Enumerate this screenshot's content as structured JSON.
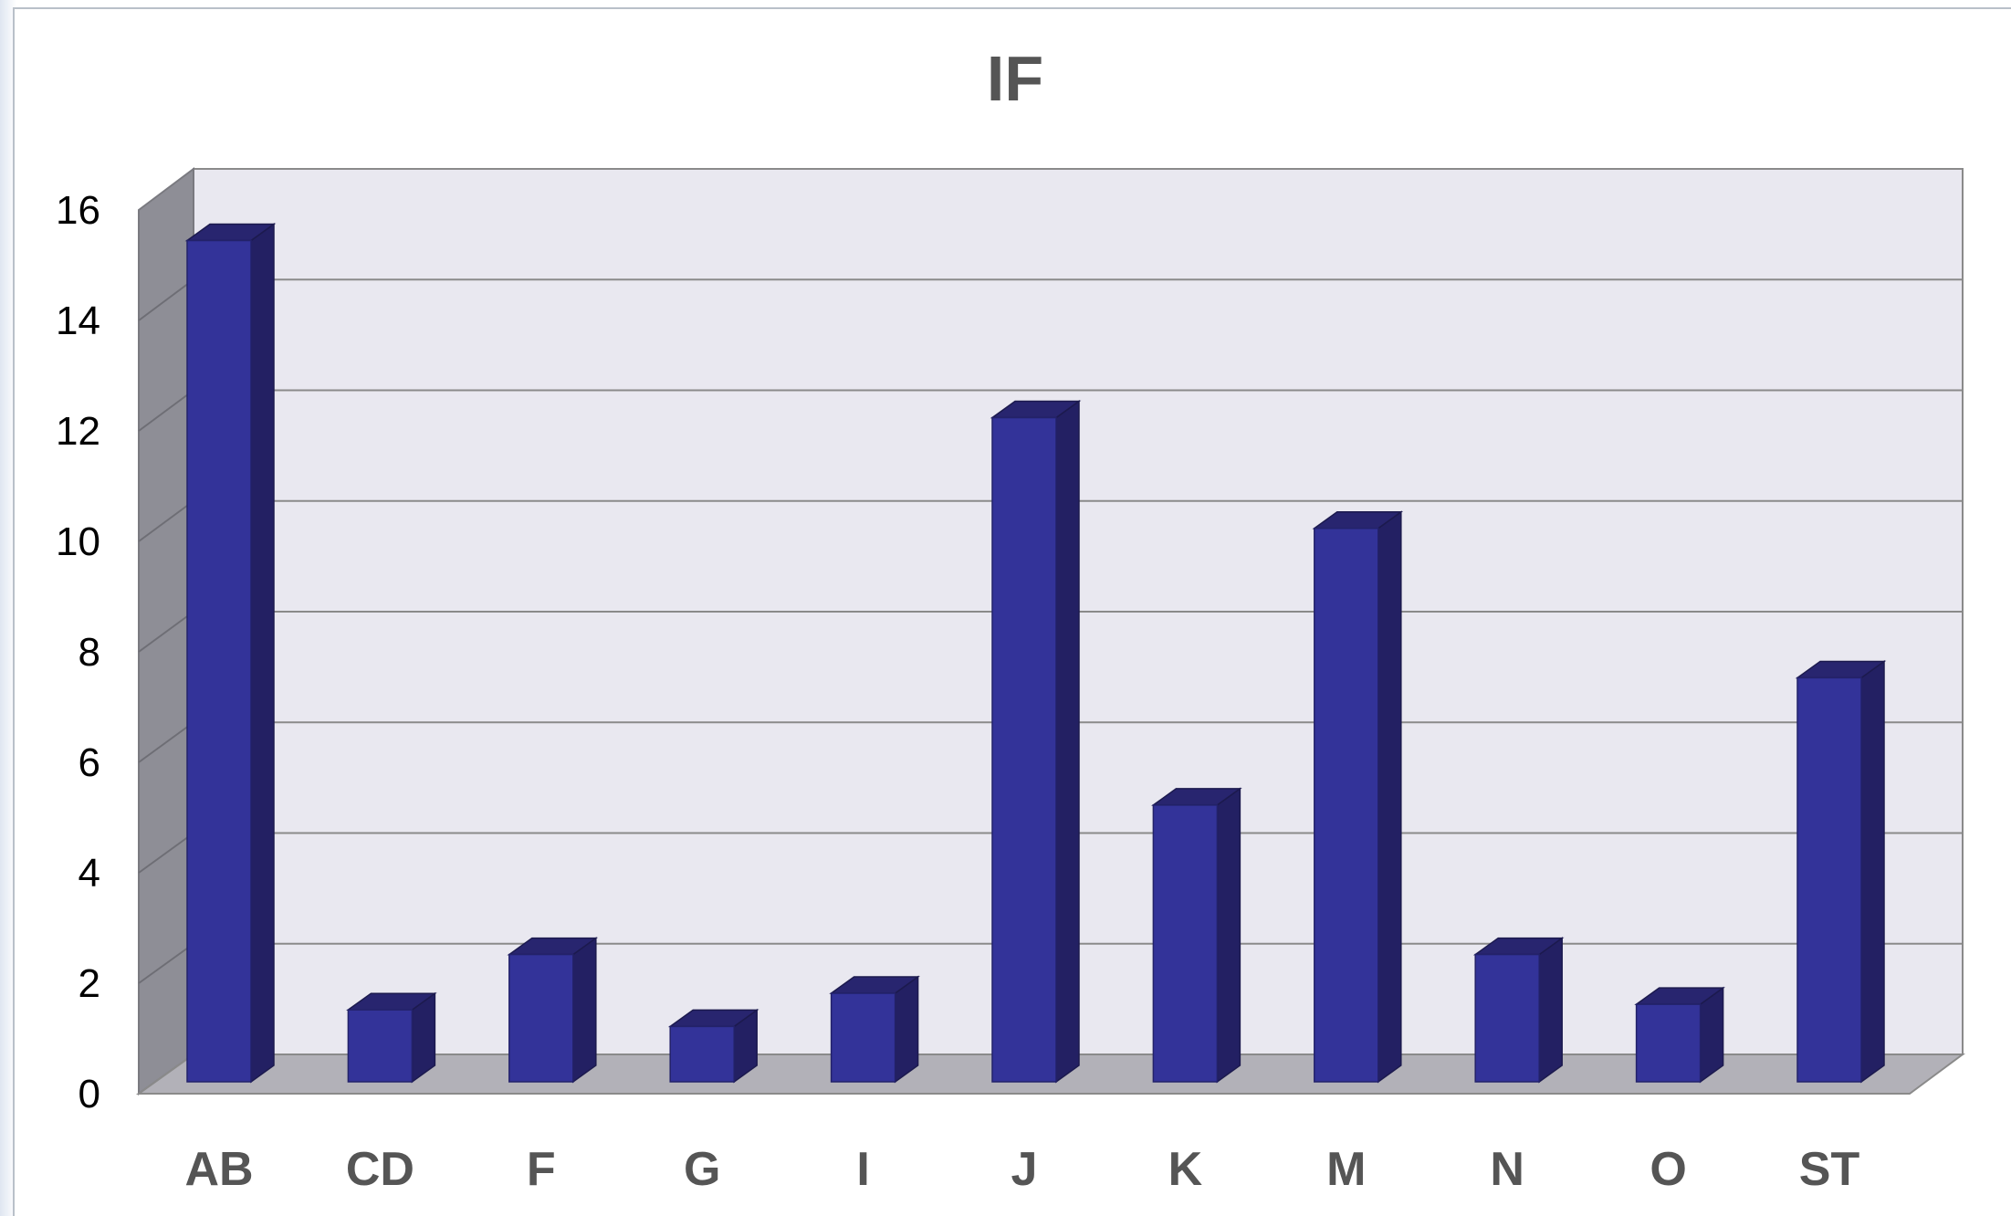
{
  "chart_data": {
    "type": "bar",
    "style": "3d-column",
    "title": "IF",
    "xlabel": "",
    "ylabel": "",
    "categories": [
      "AB",
      "CD",
      "F",
      "G",
      "I",
      "J",
      "K",
      "M",
      "N",
      "O",
      "ST"
    ],
    "values": [
      15.2,
      1.3,
      2.3,
      1.0,
      1.6,
      12.0,
      5.0,
      10.0,
      2.3,
      1.4,
      7.3
    ],
    "ylim": [
      0,
      16
    ],
    "yticks": [
      "0",
      "2",
      "4",
      "6",
      "8",
      "10",
      "12",
      "14",
      "16"
    ],
    "grid": true,
    "legend": "none",
    "colors": {
      "bar_front": "#333399",
      "bar_side": "#232063",
      "bar_top": "#28256f",
      "wall": "#e9e8f0",
      "side_wall": "#8e8e96",
      "floor": "#b2b1b8",
      "gridline": "#8a8a8a"
    }
  }
}
